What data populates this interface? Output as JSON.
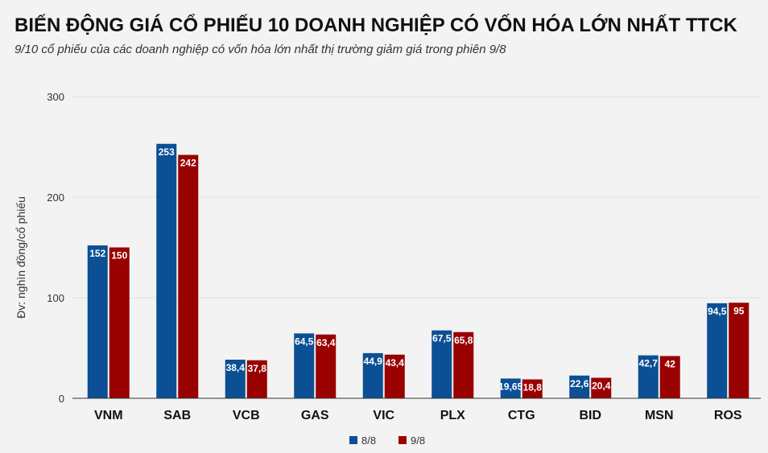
{
  "chart_data": {
    "type": "bar",
    "title": "BIẾN ĐỘNG GIÁ CỔ PHIẾU 10 DOANH NGHIỆP CÓ VỐN HÓA LỚN NHẤT TTCK",
    "subtitle": "9/10 cổ phiếu của các doanh nghiệp có vốn hóa lớn nhất thị trường giảm giá trong phiên 9/8",
    "ylabel": "Đv: nghìn đồng/cổ phiếu",
    "xlabel": "",
    "ylim": [
      0,
      300
    ],
    "yticks": [
      0,
      100,
      200,
      300
    ],
    "grid": true,
    "legend": "bottom",
    "categories": [
      "VNM",
      "SAB",
      "VCB",
      "GAS",
      "VIC",
      "PLX",
      "CTG",
      "BID",
      "MSN",
      "ROS"
    ],
    "series": [
      {
        "name": "8/8",
        "color": "#0b4f94",
        "values": [
          152,
          253,
          38.4,
          64.5,
          44.9,
          67.5,
          19.65,
          22.6,
          42.7,
          94.5
        ],
        "labels": [
          "152",
          "253",
          "38,4",
          "64,5",
          "44,9",
          "67,5",
          "19,65",
          "22,6",
          "42,7",
          "94,5"
        ]
      },
      {
        "name": "9/8",
        "color": "#990000",
        "values": [
          150,
          242,
          37.8,
          63.4,
          43.4,
          65.8,
          18.8,
          20.4,
          42,
          95
        ],
        "labels": [
          "150",
          "242",
          "37,8",
          "63,4",
          "43,4",
          "65,8",
          "18,8",
          "20,4",
          "42",
          "95"
        ]
      }
    ]
  }
}
